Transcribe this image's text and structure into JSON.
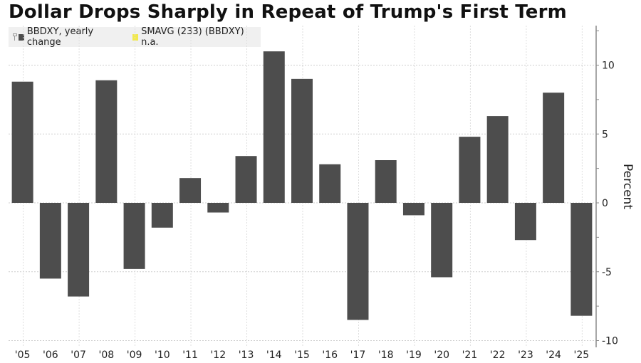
{
  "chart_data": {
    "type": "bar",
    "title": "Dollar Drops Sharply in Repeat of Trump's First Term",
    "xlabel": "",
    "ylabel": "Percent",
    "ylim": [
      -10.4,
      12.8
    ],
    "yticks": [
      10,
      5,
      0,
      -5,
      -10
    ],
    "ytick_labels": [
      "10",
      "5",
      "0",
      "-5",
      "-10"
    ],
    "grid": true,
    "legend_position": "top-left",
    "legend": [
      {
        "name": "BBDXY, yearly change",
        "color": "#4d4d4d"
      },
      {
        "name": "SMAVG (233) (BBDXY) n.a.",
        "color": "#f2e94e"
      }
    ],
    "categories": [
      "'05",
      "'06",
      "'07",
      "'08",
      "'09",
      "'10",
      "'11",
      "'12",
      "'13",
      "'14",
      "'15",
      "'16",
      "'17",
      "'18",
      "'19",
      "'20",
      "'21",
      "'22",
      "'23",
      "'24",
      "'25"
    ],
    "series": [
      {
        "name": "BBDXY, yearly change",
        "color": "#4d4d4d",
        "values": [
          8.8,
          -5.5,
          -6.8,
          8.9,
          -4.8,
          -1.8,
          1.8,
          -0.7,
          3.4,
          11.0,
          9.0,
          2.8,
          -8.5,
          3.1,
          -0.9,
          -5.4,
          4.8,
          6.3,
          -2.7,
          8.0,
          -8.2
        ]
      }
    ]
  }
}
